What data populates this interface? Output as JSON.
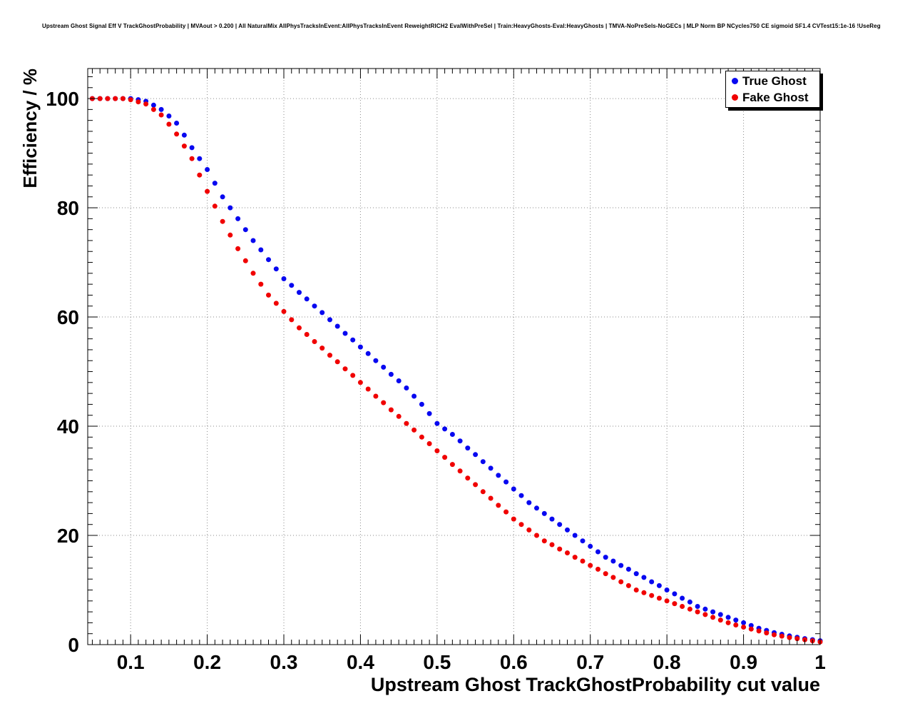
{
  "title": "Upstream Ghost Signal Eff V TrackGhostProbability | MVAout > 0.200 | All NaturalMix AllPhysTracksInEvent:AllPhysTracksInEvent ReweightRICH2 EvalWithPreSel | Train:HeavyGhosts-Eval:HeavyGhosts | TMVA-NoPreSels-NoGECs | MLP Norm BP NCycles750 CE sigmoid SF1.4 CVTest15:1e-16 !UseReg",
  "axes": {
    "x_label": "Upstream Ghost TrackGhostProbability cut value",
    "y_label": "Efficiency / %",
    "x_ticks": [
      0.1,
      0.2,
      0.3,
      0.4,
      0.5,
      0.6,
      0.7,
      0.8,
      0.9,
      1
    ],
    "x_tick_labels": [
      "0.1",
      "0.2",
      "0.3",
      "0.4",
      "0.5",
      "0.6",
      "0.7",
      "0.8",
      "0.9",
      "1"
    ],
    "y_ticks": [
      0,
      20,
      40,
      60,
      80,
      100
    ],
    "y_tick_labels": [
      "0",
      "20",
      "40",
      "60",
      "80",
      "100"
    ]
  },
  "legend": {
    "entries": [
      {
        "label": "True Ghost",
        "color": "#0808f0"
      },
      {
        "label": "Fake Ghost",
        "color": "#f00000"
      }
    ]
  },
  "chart_data": {
    "type": "scatter",
    "title": "Upstream Ghost Signal Eff V TrackGhostProbability",
    "xlabel": "Upstream Ghost TrackGhostProbability cut value",
    "ylabel": "Efficiency / %",
    "xlim": [
      0.044,
      1.0
    ],
    "ylim": [
      0,
      105.5
    ],
    "grid": true,
    "legend_position": "top-right",
    "marker": "filled-circle",
    "x_start": 0.05,
    "x_step": 0.01,
    "series": [
      {
        "name": "True Ghost",
        "color": "#0808f0",
        "values": [
          100,
          100,
          100,
          100,
          100,
          100,
          99.8,
          99.5,
          98.8,
          98,
          96.8,
          95.5,
          93.3,
          91,
          89,
          87,
          84.5,
          82,
          80,
          78,
          76,
          74,
          72.3,
          70.5,
          68.8,
          67,
          65.8,
          64.5,
          63.3,
          62,
          60.8,
          59.5,
          58.3,
          57,
          55.8,
          54.5,
          53.3,
          52,
          50.8,
          49.5,
          48.3,
          47,
          45.5,
          44,
          42.3,
          40.5,
          39.5,
          38.5,
          37.3,
          36,
          34.8,
          33.5,
          32.3,
          31,
          29.8,
          28.5,
          27.3,
          26,
          25,
          24,
          23,
          22,
          21,
          20,
          19,
          18,
          17,
          16,
          15.3,
          14.5,
          13.8,
          13,
          12.3,
          11.5,
          10.8,
          10,
          9.3,
          8.5,
          7.8,
          7,
          6.5,
          6,
          5.5,
          5,
          4.5,
          4,
          3.5,
          3,
          2.6,
          2.2,
          1.9,
          1.6,
          1.35,
          1.1,
          0.9,
          0.7
        ]
      },
      {
        "name": "Fake Ghost",
        "color": "#f00000",
        "values": [
          100,
          100,
          100,
          100,
          100,
          99.8,
          99.4,
          99,
          98,
          97,
          95.3,
          93.5,
          91.3,
          89,
          86,
          83,
          80.3,
          77.5,
          75,
          72.5,
          70.3,
          68,
          66,
          64,
          62.5,
          61,
          59.5,
          58,
          56.8,
          55.5,
          54.3,
          53,
          51.8,
          50.5,
          49.3,
          48,
          46.8,
          45.5,
          44.3,
          43,
          41.8,
          40.5,
          39.3,
          38,
          36.8,
          35.5,
          34.3,
          33,
          31.8,
          30.5,
          29.3,
          28,
          26.8,
          25.5,
          24.3,
          23,
          22,
          21,
          20,
          19,
          18.3,
          17.5,
          16.8,
          16,
          15.3,
          14.5,
          13.8,
          13,
          12.3,
          11.5,
          10.8,
          10,
          9.5,
          9,
          8.5,
          8,
          7.5,
          7,
          6.5,
          6,
          5.5,
          5,
          4.5,
          4,
          3.6,
          3.2,
          2.85,
          2.5,
          2.15,
          1.8,
          1.55,
          1.3,
          1.1,
          0.9,
          0.7,
          0.5
        ]
      }
    ]
  }
}
